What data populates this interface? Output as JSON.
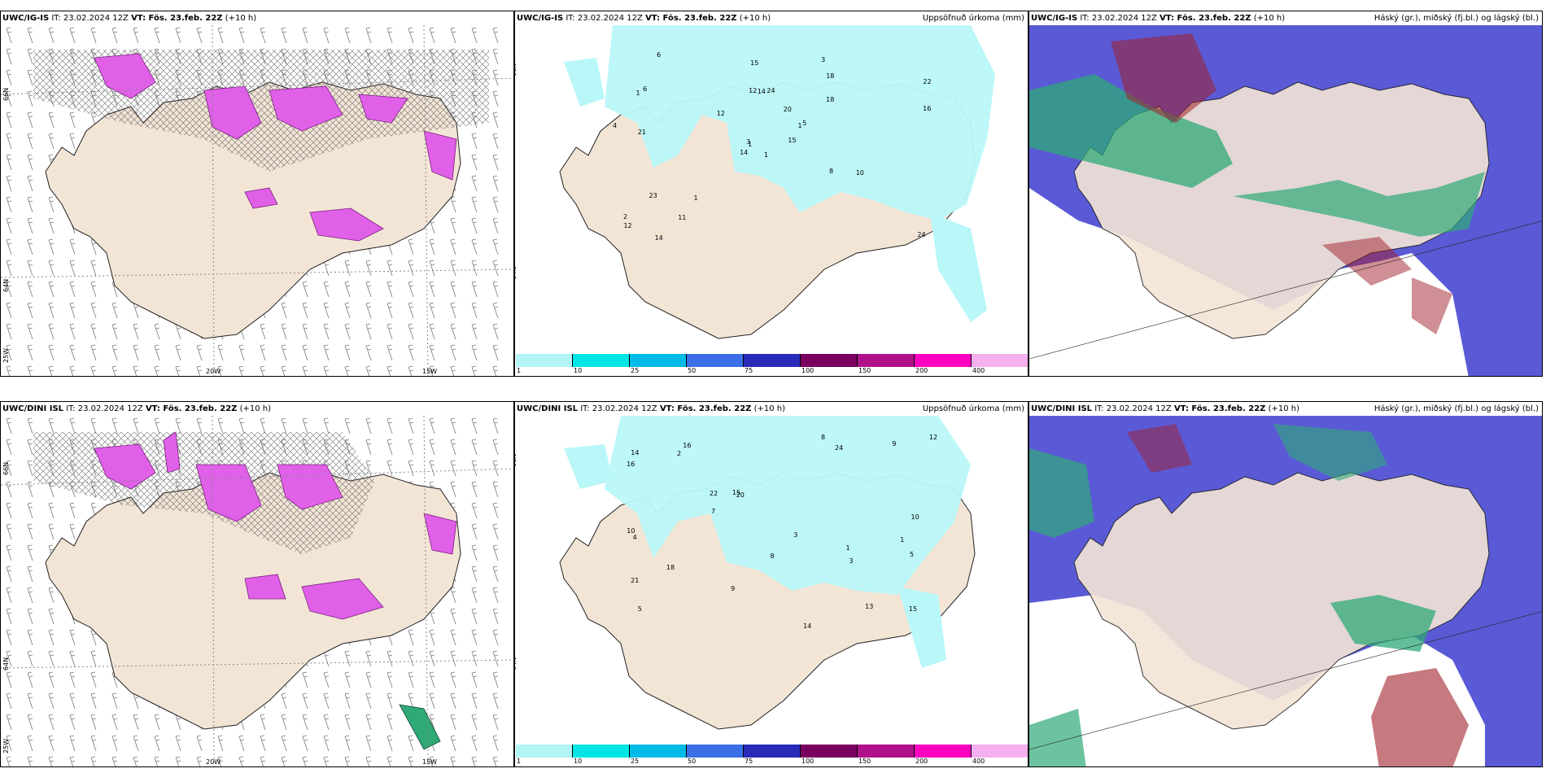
{
  "panels": {
    "p1": {
      "model": "UWC/IG-IS",
      "it": "IT: 23.02.2024 12Z",
      "vt": "VT: Fös. 23.feb. 22Z",
      "lead": "(+10 h)",
      "right": ""
    },
    "p2": {
      "model": "UWC/IG-IS",
      "it": "IT: 23.02.2024 12Z",
      "vt": "VT: Fös. 23.feb. 22Z",
      "lead": "(+10 h)",
      "right": "Uppsöfnuð úrkoma (mm)"
    },
    "p3": {
      "model": "UWC/IG-IS",
      "it": "IT: 23.02.2024 12Z",
      "vt": "VT: Fös. 23.feb. 22Z",
      "lead": "(+10 h)",
      "right": "Háský (gr.), miðský (fj.bl.) og lágský (bl.)"
    },
    "p4": {
      "model": "UWC/DINI ISL",
      "it": "IT: 23.02.2024 12Z",
      "vt": "VT: Fös. 23.feb. 22Z",
      "lead": "(+10 h)",
      "right": ""
    },
    "p5": {
      "model": "UWC/DINI ISL",
      "it": "IT: 23.02.2024 12Z",
      "vt": "VT: Fös. 23.feb. 22Z",
      "lead": "(+10 h)",
      "right": "Uppsöfnuð úrkoma (mm)"
    },
    "p6": {
      "model": "UWC/DINI ISL",
      "it": "IT: 23.02.2024 12Z",
      "vt": "VT: Fös. 23.feb. 22Z",
      "lead": "(+10 h)",
      "right": "Háský (gr.), miðský (fj.bl.) og lágský (bl.)"
    }
  },
  "axis_labels": {
    "lat66": "66N",
    "lat64": "64N",
    "lon25": "25W",
    "lon20": "20W",
    "lon15": "15W"
  },
  "colorbar": {
    "labels": [
      "1",
      "10",
      "25",
      "50",
      "75",
      "100",
      "150",
      "200",
      "400"
    ],
    "colors": [
      "#b3f5f5",
      "#00e5e5",
      "#00bbe8",
      "#3a6fe8",
      "#2a2ab8",
      "#7a0060",
      "#b0108a",
      "#ff00c0",
      "#f5b0f0"
    ]
  },
  "colors": {
    "land": "#f3e5d6",
    "precip": "#b9f7f8",
    "snow": "#e060e8",
    "hatch": "#555555",
    "cloud_low": "#5a5ad6",
    "cloud_mid": "#2faa77",
    "cloud_high": "#a0202a"
  },
  "precip_numbers_top": [
    "1",
    "1",
    "1",
    "2",
    "1",
    "1",
    "3",
    "24",
    "18",
    "15",
    "6",
    "24",
    "21",
    "22",
    "14",
    "18",
    "14",
    "12",
    "20",
    "23",
    "12",
    "12",
    "11",
    "14",
    "5",
    "10",
    "6",
    "15",
    "4",
    "8",
    "16",
    "3"
  ],
  "precip_numbers_bottom": [
    "1",
    "1",
    "5",
    "16",
    "20",
    "13",
    "21",
    "24",
    "22",
    "14",
    "16",
    "10",
    "14",
    "15",
    "9",
    "10",
    "8",
    "3",
    "15",
    "18",
    "12",
    "9",
    "7",
    "5",
    "8",
    "2",
    "3",
    "4"
  ]
}
